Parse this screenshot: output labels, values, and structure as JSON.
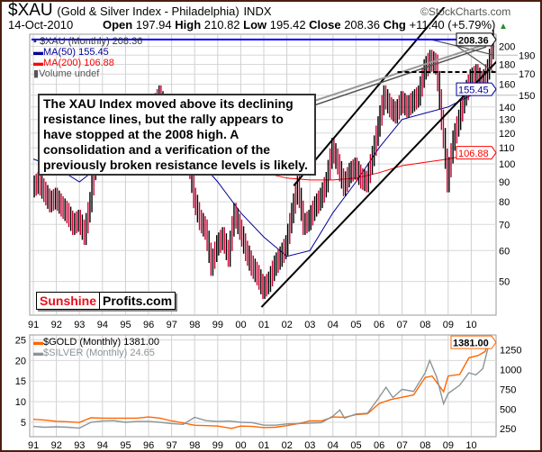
{
  "header": {
    "symbol": "$XAU",
    "name": "(Gold & Silver Index - Philadelphia)",
    "exchange": "INDX",
    "date": "14-Oct-2010",
    "watermark": "©StockCharts.com",
    "open_label": "Open",
    "open": "197.94",
    "high_label": "High",
    "high": "210.82",
    "low_label": "Low",
    "low": "195.42",
    "close_label": "Close",
    "close": "208.36",
    "chg_label": "Chg",
    "chg": "+11.40 (+5.79%)"
  },
  "colors": {
    "up": "#000000",
    "down": "#cc0033",
    "ma50": "#000099",
    "ma200": "#ff0000",
    "gold": "#ff6600",
    "silver": "#8a9499",
    "resistance": "#0000ff"
  },
  "legend": {
    "price": "$XAU (Monthly) 208.36",
    "ma50": "MA(50) 155.45",
    "ma200": "MA(200) 106.88",
    "volume": "Volume undef"
  },
  "annotation": "The XAU Index moved above its declining resistance lines, but the rally appears to have stopped at the 2008 high. A consolidation and a verification of the previously broken resistance levels is likely.",
  "logo": {
    "part1": "Sunshine",
    "part2": "Profits.com"
  },
  "lower_legend": {
    "gold": "$GOLD (Monthly) 1381.00",
    "silver": "$SILVER (Monthly) 24.65"
  },
  "chart_data": [
    {
      "type": "ohlc",
      "title": "$XAU (Monthly)",
      "scale": "log",
      "ylim": [
        41,
        215
      ],
      "xlim": [
        1990.92,
        2011.0
      ],
      "x_ticks": [
        "91",
        "92",
        "93",
        "94",
        "95",
        "96",
        "97",
        "98",
        "99",
        "00",
        "01",
        "02",
        "03",
        "04",
        "05",
        "06",
        "07",
        "08",
        "09",
        "10"
      ],
      "y_ticks": [
        50,
        60,
        70,
        80,
        90,
        100,
        110,
        120,
        130,
        140,
        150,
        160,
        170,
        180,
        190,
        200
      ],
      "last_labels": {
        "price": "208.36",
        "ma50": "155.45",
        "ma200": "106.88"
      },
      "x_start": 1991.0,
      "period": 0.25,
      "closes": [
        90,
        85,
        80,
        82,
        78,
        75,
        70,
        72,
        66,
        80,
        105,
        110,
        118,
        112,
        120,
        108,
        105,
        110,
        115,
        118,
        140,
        150,
        135,
        128,
        120,
        110,
        105,
        82,
        72,
        68,
        55,
        62,
        65,
        58,
        75,
        68,
        60,
        55,
        52,
        48,
        50,
        55,
        58,
        62,
        75,
        88,
        70,
        72,
        78,
        82,
        90,
        110,
        100,
        88,
        95,
        98,
        92,
        90,
        105,
        125,
        150,
        140,
        135,
        145,
        140,
        145,
        150,
        175,
        185,
        180,
        130,
        90,
        115,
        130,
        150,
        165,
        170,
        160,
        175,
        208.36
      ],
      "ma50": [
        [
          1991,
          103
        ],
        [
          1992,
          98
        ],
        [
          1993,
          90
        ],
        [
          1994,
          100
        ],
        [
          1995,
          110
        ],
        [
          1996,
          115
        ],
        [
          1997,
          118
        ],
        [
          1998,
          105
        ],
        [
          1999,
          90
        ],
        [
          2000,
          75
        ],
        [
          2001,
          65
        ],
        [
          2002,
          58
        ],
        [
          2003,
          60
        ],
        [
          2004,
          75
        ],
        [
          2005,
          90
        ],
        [
          2006,
          110
        ],
        [
          2007,
          130
        ],
        [
          2008,
          135
        ],
        [
          2009,
          140
        ],
        [
          2010,
          150
        ],
        [
          2010.8,
          155.45
        ]
      ],
      "ma200": [
        [
          1997,
          118
        ],
        [
          1998,
          118
        ],
        [
          1999,
          112
        ],
        [
          2000,
          100
        ],
        [
          2001,
          95
        ],
        [
          2002,
          92
        ],
        [
          2003,
          91
        ],
        [
          2004,
          91
        ],
        [
          2005,
          92
        ],
        [
          2006,
          95
        ],
        [
          2007,
          99
        ],
        [
          2008,
          101
        ],
        [
          2009,
          103
        ],
        [
          2010,
          106
        ],
        [
          2010.8,
          106.88
        ]
      ],
      "trendlines": [
        {
          "name": "upper-channel",
          "pts": [
            [
              2002.3,
              88
            ],
            [
              2009.9,
              300
            ]
          ]
        },
        {
          "name": "lower-channel",
          "pts": [
            [
              2000.9,
              43
            ],
            [
              2010.5,
              168
            ]
          ]
        },
        {
          "name": "resistance-2008-a",
          "pts": [
            [
              2008.3,
              208
            ],
            [
              2011.0,
              190
            ]
          ]
        },
        {
          "name": "resistance-2008-b",
          "pts": [
            [
              2009.4,
              200
            ],
            [
              2011.0,
              172
            ]
          ]
        }
      ],
      "horizontal_levels": [
        {
          "name": "2008-high",
          "value": 208.36,
          "from": 1990.92
        },
        {
          "name": "support-dashed",
          "value": 172,
          "from": 2006.8
        }
      ]
    },
    {
      "type": "line",
      "x_ticks": [
        "91",
        "92",
        "93",
        "94",
        "95",
        "96",
        "97",
        "98",
        "99",
        "00",
        "01",
        "02",
        "03",
        "04",
        "05",
        "06",
        "07",
        "08",
        "09",
        "10"
      ],
      "left_axis": {
        "ticks": [
          5,
          10,
          15,
          20,
          25
        ],
        "ylim": [
          1.5,
          26.2
        ]
      },
      "right_axis": {
        "ticks": [
          250,
          500,
          750,
          1000,
          1250
        ],
        "ylim": [
          150,
          1440
        ]
      },
      "series": [
        {
          "name": "$GOLD (Monthly)",
          "axis": "right",
          "last": "1381.00",
          "points": [
            [
              1991,
              370
            ],
            [
              1991.5,
              360
            ],
            [
              1992,
              345
            ],
            [
              1992.5,
              340
            ],
            [
              1993,
              330
            ],
            [
              1993.5,
              390
            ],
            [
              1994,
              385
            ],
            [
              1994.5,
              385
            ],
            [
              1995,
              385
            ],
            [
              1995.5,
              385
            ],
            [
              1996,
              400
            ],
            [
              1996.5,
              385
            ],
            [
              1997,
              350
            ],
            [
              1997.5,
              325
            ],
            [
              1998,
              295
            ],
            [
              1998.5,
              290
            ],
            [
              1999,
              285
            ],
            [
              1999.6,
              255
            ],
            [
              2000,
              285
            ],
            [
              2000.5,
              280
            ],
            [
              2001,
              265
            ],
            [
              2001.5,
              270
            ],
            [
              2002,
              290
            ],
            [
              2002.5,
              315
            ],
            [
              2003,
              350
            ],
            [
              2003.5,
              350
            ],
            [
              2004,
              400
            ],
            [
              2004.5,
              395
            ],
            [
              2005,
              430
            ],
            [
              2005.5,
              440
            ],
            [
              2006,
              570
            ],
            [
              2006.5,
              620
            ],
            [
              2007,
              650
            ],
            [
              2007.5,
              680
            ],
            [
              2008,
              900
            ],
            [
              2008.3,
              920
            ],
            [
              2008.8,
              720
            ],
            [
              2009,
              920
            ],
            [
              2009.5,
              940
            ],
            [
              2009.9,
              1150
            ],
            [
              2010.3,
              1180
            ],
            [
              2010.6,
              1230
            ],
            [
              2010.8,
              1381
            ]
          ]
        },
        {
          "name": "$SILVER (Monthly)",
          "axis": "left",
          "last": "24.65",
          "points": [
            [
              1991,
              4
            ],
            [
              1991.5,
              3.8
            ],
            [
              1992,
              3.9
            ],
            [
              1992.5,
              3.8
            ],
            [
              1993,
              3.6
            ],
            [
              1993.5,
              5
            ],
            [
              1994,
              5.3
            ],
            [
              1994.5,
              5.4
            ],
            [
              1995,
              5
            ],
            [
              1995.5,
              5.2
            ],
            [
              1996,
              5.2
            ],
            [
              1996.5,
              5
            ],
            [
              1997,
              4.7
            ],
            [
              1997.5,
              4.5
            ],
            [
              1998,
              6.2
            ],
            [
              1998.5,
              5.4
            ],
            [
              1999,
              5.2
            ],
            [
              1999.5,
              5.3
            ],
            [
              2000,
              5
            ],
            [
              2000.5,
              4.9
            ],
            [
              2001,
              4.3
            ],
            [
              2001.5,
              4.3
            ],
            [
              2002,
              4.6
            ],
            [
              2002.5,
              4.7
            ],
            [
              2003,
              4.8
            ],
            [
              2003.5,
              4.9
            ],
            [
              2004,
              6.5
            ],
            [
              2004.3,
              8
            ],
            [
              2004.5,
              6
            ],
            [
              2005,
              7
            ],
            [
              2005.5,
              7.2
            ],
            [
              2006,
              11
            ],
            [
              2006.3,
              13.5
            ],
            [
              2006.6,
              11
            ],
            [
              2007,
              13
            ],
            [
              2007.5,
              12.5
            ],
            [
              2008,
              17
            ],
            [
              2008.2,
              20
            ],
            [
              2008.5,
              16
            ],
            [
              2008.8,
              9.5
            ],
            [
              2009,
              12
            ],
            [
              2009.5,
              14
            ],
            [
              2009.9,
              17
            ],
            [
              2010.2,
              16.5
            ],
            [
              2010.5,
              18
            ],
            [
              2010.8,
              24.65
            ]
          ]
        }
      ]
    }
  ]
}
